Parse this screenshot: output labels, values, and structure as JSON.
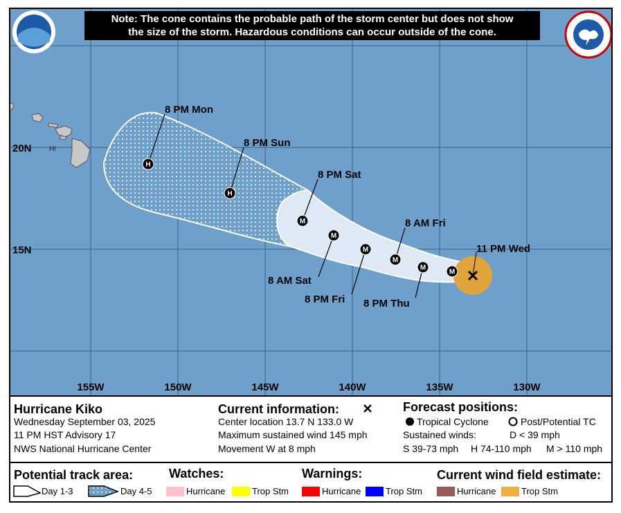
{
  "note_lines": [
    "Note: The cone contains the probable path of the storm center but does not show",
    "the size of the storm. Hazardous conditions can occur outside of the cone."
  ],
  "map": {
    "lon_labels": [
      "155W",
      "150W",
      "145W",
      "140W",
      "135W",
      "130W"
    ],
    "lat_labels": [
      "20N",
      "15N"
    ],
    "region_label": "HI",
    "points": [
      {
        "symbol": "H",
        "label": "8 PM Mon"
      },
      {
        "symbol": "H",
        "label": "8 PM Sun"
      },
      {
        "symbol": "M",
        "label": "8 PM Sat"
      },
      {
        "symbol": "M",
        "label": "8 AM Sat"
      },
      {
        "symbol": "M",
        "label": "8 PM Fri"
      },
      {
        "symbol": "M",
        "label": "8 AM Fri"
      },
      {
        "symbol": "M",
        "label": "8 PM Thu"
      },
      {
        "symbol": "M",
        "label": null
      }
    ],
    "current_label": "11 PM Wed"
  },
  "info": {
    "storm": "Hurricane Kiko",
    "date": "Wednesday September 03, 2025",
    "advisory": "11 PM HST Advisory 17",
    "office": "NWS National Hurricane Center"
  },
  "current": {
    "title": "Current information:",
    "location": "Center location 13.7 N 133.0 W",
    "wind": "Maximum sustained wind 145 mph",
    "movement": "Movement W at 8 mph"
  },
  "forecast": {
    "title": "Forecast positions:",
    "tropical": "Tropical Cyclone",
    "post": "Post/Potential TC",
    "sustained": "Sustained winds:",
    "d": "D < 39 mph",
    "s": "S 39-73 mph",
    "h": "H 74-110 mph",
    "m": "M > 110 mph"
  },
  "legend": {
    "track_title": "Potential track area:",
    "day13": "Day 1-3",
    "day45": "Day 4-5",
    "watches_title": "Watches:",
    "watch_hurricane": "Hurricane",
    "watch_trop": "Trop Stm",
    "warnings_title": "Warnings:",
    "warn_hurricane": "Hurricane",
    "warn_trop": "Trop Stm",
    "wind_title": "Current wind field estimate:",
    "wind_hurricane": "Hurricane",
    "wind_trop": "Trop Stm"
  }
}
